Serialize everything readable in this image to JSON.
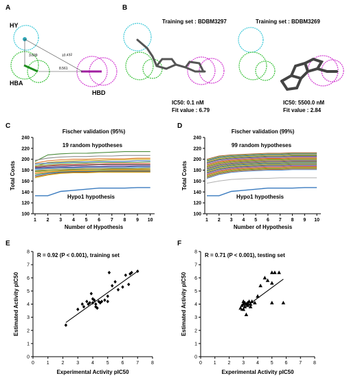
{
  "panel_letters": {
    "a": "A",
    "b": "B",
    "c": "C",
    "d": "D",
    "e": "E",
    "f": "F"
  },
  "pharmacophore": {
    "features": [
      "HY",
      "HBA",
      "HBD"
    ],
    "distances": [
      "3.609",
      "10.432",
      "8.561"
    ]
  },
  "training": [
    {
      "title": "Training set : BDBM3297",
      "ic50": "IC50: 0.1 nM",
      "fit": "Fit value : 6.79"
    },
    {
      "title": "Training set : BDBM3269",
      "ic50": "IC50: 5500.0 nM",
      "fit": "Fit value : 2.84"
    }
  ],
  "colors": {
    "hy": "#3cc8d8",
    "hba": "#3cc23c",
    "hbd": "#d23cd2",
    "ligand": "#555555"
  },
  "chart_data": [
    {
      "type": "line",
      "title": "Fischer validation (95%)",
      "annotation": "19 random hypotheses",
      "baseline_label": "Hypo1 hypothesis",
      "xlabel": "Number of Hypothesis",
      "ylabel": "Total Costs",
      "x": [
        1,
        2,
        3,
        4,
        5,
        6,
        7,
        8,
        9,
        10
      ],
      "xticks": [
        1,
        2,
        3,
        4,
        5,
        6,
        7,
        8,
        9,
        10
      ],
      "yticks": [
        100,
        120,
        140,
        160,
        180,
        200,
        220,
        240
      ],
      "ylim": [
        100,
        240
      ],
      "series": [
        {
          "color": "#3a7bbf",
          "values": [
            133,
            133,
            141,
            143,
            145,
            147,
            147,
            147,
            148,
            148
          ]
        },
        {
          "color": "#4c8c3c",
          "values": [
            196,
            208,
            210,
            211,
            211,
            212,
            213,
            214,
            214,
            214
          ]
        },
        {
          "color": "#8a8a8a",
          "values": [
            198,
            202,
            204,
            205,
            205,
            206,
            206,
            207,
            207,
            207
          ]
        },
        {
          "color": "#e07a2c",
          "values": [
            193,
            197,
            199,
            200,
            200,
            201,
            201,
            201,
            202,
            202
          ]
        },
        {
          "color": "#c7a417",
          "values": [
            187,
            194,
            196,
            197,
            198,
            198,
            199,
            199,
            200,
            200
          ]
        },
        {
          "color": "#2d6fb5",
          "values": [
            191,
            193,
            194,
            195,
            195,
            196,
            196,
            196,
            197,
            197
          ]
        },
        {
          "color": "#6fa84c",
          "values": [
            188,
            190,
            192,
            193,
            193,
            194,
            194,
            194,
            194,
            195
          ]
        },
        {
          "color": "#d94f3a",
          "values": [
            186,
            188,
            190,
            190,
            191,
            191,
            192,
            192,
            192,
            192
          ]
        },
        {
          "color": "#5a5a5a",
          "values": [
            185,
            187,
            188,
            189,
            189,
            190,
            190,
            190,
            190,
            190
          ]
        },
        {
          "color": "#9b59b6",
          "values": [
            184,
            185,
            186,
            187,
            187,
            187,
            188,
            188,
            188,
            188
          ]
        },
        {
          "color": "#1f4e8c",
          "values": [
            183,
            184,
            185,
            185,
            186,
            186,
            186,
            186,
            187,
            187
          ]
        },
        {
          "color": "#4aa3df",
          "values": [
            181,
            182,
            183,
            183,
            184,
            184,
            184,
            184,
            185,
            185
          ]
        },
        {
          "color": "#e8a33d",
          "values": [
            179,
            181,
            182,
            182,
            183,
            183,
            183,
            183,
            183,
            184
          ]
        },
        {
          "color": "#2f7a2f",
          "values": [
            178,
            179,
            180,
            181,
            181,
            181,
            182,
            182,
            182,
            182
          ]
        },
        {
          "color": "#f2c23a",
          "values": [
            176,
            178,
            179,
            180,
            180,
            180,
            181,
            181,
            181,
            181
          ]
        },
        {
          "color": "#e36f2a",
          "values": [
            174,
            176,
            178,
            179,
            179,
            179,
            180,
            180,
            180,
            180
          ]
        },
        {
          "color": "#7fbf5a",
          "values": [
            172,
            175,
            177,
            178,
            178,
            179,
            179,
            179,
            179,
            179
          ]
        },
        {
          "color": "#3b6fb0",
          "values": [
            170,
            174,
            176,
            177,
            177,
            178,
            178,
            178,
            178,
            178
          ]
        },
        {
          "color": "#a0522d",
          "values": [
            168,
            172,
            175,
            176,
            176,
            177,
            177,
            177,
            177,
            177
          ]
        },
        {
          "color": "#d4b020",
          "values": [
            166,
            171,
            174,
            175,
            175,
            176,
            176,
            176,
            176,
            176
          ]
        }
      ]
    },
    {
      "type": "line",
      "title": "Fischer validation (99%)",
      "annotation": "99 random hypotheses",
      "baseline_label": "Hypo1 hypothesis",
      "xlabel": "Number of Hypothesis",
      "ylabel": "Total Costs",
      "x": [
        1,
        2,
        3,
        4,
        5,
        6,
        7,
        8,
        9,
        10
      ],
      "xticks": [
        1,
        2,
        3,
        4,
        5,
        6,
        7,
        8,
        9,
        10
      ],
      "yticks": [
        100,
        120,
        140,
        160,
        180,
        200,
        220,
        240
      ],
      "ylim": [
        100,
        240
      ],
      "baseline": {
        "color": "#3a7bbf",
        "values": [
          133,
          133,
          141,
          143,
          145,
          147,
          147,
          147,
          148,
          148
        ]
      },
      "band": {
        "low": [
          165,
          172,
          176,
          178,
          179,
          180,
          180,
          181,
          181,
          181
        ],
        "high": [
          200,
          206,
          208,
          209,
          210,
          211,
          211,
          212,
          212,
          212
        ]
      },
      "outlier": {
        "color": "#b0b0b0",
        "values": [
          156,
          160,
          163,
          164,
          165,
          165,
          166,
          166,
          166,
          166
        ]
      }
    },
    {
      "type": "scatter",
      "title": "R = 0.92 (P < 0.001), training set",
      "xlabel": "Experimental Activity pIC50",
      "ylabel": "Estimated Activity pIC50",
      "xticks": [
        0,
        1,
        2,
        3,
        4,
        5,
        6,
        7,
        8
      ],
      "yticks": [
        0,
        1,
        2,
        3,
        4,
        5,
        6,
        7,
        8
      ],
      "xlim": [
        0,
        8
      ],
      "ylim": [
        0,
        8
      ],
      "marker": "diamond",
      "x": [
        2.2,
        3.0,
        3.3,
        3.4,
        3.6,
        3.7,
        3.8,
        3.9,
        4.0,
        4.0,
        4.1,
        4.2,
        4.2,
        4.3,
        4.4,
        4.5,
        4.6,
        4.8,
        5.0,
        5.0,
        5.1,
        5.3,
        5.5,
        5.7,
        6.0,
        6.2,
        6.4,
        6.5,
        6.6,
        7.0
      ],
      "y": [
        2.4,
        3.6,
        4.0,
        3.8,
        4.2,
        4.0,
        4.1,
        4.8,
        4.1,
        4.4,
        4.3,
        4.0,
        3.8,
        3.7,
        4.2,
        4.1,
        4.2,
        4.3,
        4.2,
        4.6,
        6.4,
        5.4,
        5.7,
        5.1,
        5.3,
        6.2,
        5.5,
        6.3,
        6.4,
        6.5
      ],
      "fit_line": {
        "x": [
          2.2,
          7.0
        ],
        "y": [
          2.6,
          6.5
        ]
      }
    },
    {
      "type": "scatter",
      "title": "R = 0.71 (P < 0.001), testing set",
      "xlabel": "Experimental Activity pIC50",
      "ylabel": "Estimated Activity pIC50",
      "xticks": [
        0,
        1,
        2,
        3,
        4,
        5,
        6,
        7,
        8
      ],
      "yticks": [
        0,
        1,
        2,
        3,
        4,
        5,
        6,
        7,
        8
      ],
      "xlim": [
        0,
        8
      ],
      "ylim": [
        0,
        8
      ],
      "marker": "triangle",
      "x": [
        2.8,
        2.9,
        3.0,
        3.0,
        3.0,
        3.1,
        3.1,
        3.2,
        3.2,
        3.3,
        3.3,
        3.4,
        3.5,
        3.5,
        3.6,
        3.8,
        4.0,
        4.2,
        4.5,
        4.7,
        5.0,
        5.0,
        5.0,
        5.2,
        5.5,
        5.8
      ],
      "y": [
        3.7,
        3.9,
        4.0,
        4.2,
        3.6,
        4.1,
        3.8,
        4.0,
        3.2,
        4.1,
        3.9,
        4.2,
        4.0,
        3.8,
        4.2,
        4.1,
        4.6,
        5.4,
        6.0,
        5.8,
        6.4,
        5.6,
        4.1,
        6.4,
        6.4,
        4.1
      ],
      "fit_line": {
        "x": [
          2.8,
          5.8
        ],
        "y": [
          3.5,
          5.9
        ]
      }
    }
  ]
}
